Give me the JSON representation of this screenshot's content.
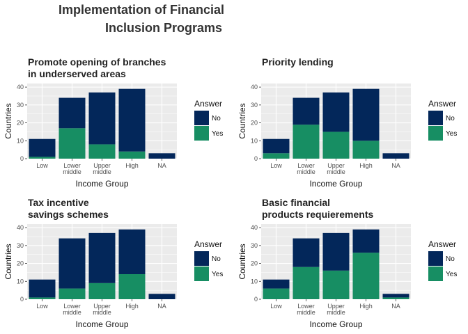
{
  "main_title": {
    "line1": "Implementation of Financial",
    "line2": "Inclusion  Programs"
  },
  "colors": {
    "No": "#03275a",
    "Yes": "#178e63",
    "panel_bg": "#ebebeb",
    "grid": "#ffffff"
  },
  "chart_data": [
    {
      "type": "bar",
      "stacked": true,
      "title_lines": [
        "Promote opening of branches",
        " in underserved areas"
      ],
      "xlabel": "Income Group",
      "ylabel": "Countries",
      "categories": [
        "Low",
        "Lower middle",
        "Upper middle",
        "High",
        "NA"
      ],
      "category_lines": [
        [
          "Low"
        ],
        [
          "Lower",
          "middle"
        ],
        [
          "Upper",
          "middle"
        ],
        [
          "High"
        ],
        [
          "NA"
        ]
      ],
      "series": [
        {
          "name": "Yes",
          "values": [
            1,
            17,
            8,
            4,
            0
          ]
        },
        {
          "name": "No",
          "values": [
            10,
            17,
            29,
            35,
            3
          ]
        }
      ],
      "ylim": [
        0,
        42
      ],
      "yticks": [
        0,
        10,
        20,
        30,
        40
      ],
      "legend": {
        "title": "Answer",
        "items": [
          "No",
          "Yes"
        ],
        "placement": "right"
      }
    },
    {
      "type": "bar",
      "stacked": true,
      "title_lines": [
        "Priority lending"
      ],
      "xlabel": "Income Group",
      "ylabel": "Countries",
      "categories": [
        "Low",
        "Lower middle",
        "Upper middle",
        "High",
        "NA"
      ],
      "category_lines": [
        [
          "Low"
        ],
        [
          "Lower",
          "middle"
        ],
        [
          "Upper",
          "middle"
        ],
        [
          "High"
        ],
        [
          "NA"
        ]
      ],
      "series": [
        {
          "name": "Yes",
          "values": [
            3,
            19,
            15,
            10,
            0
          ]
        },
        {
          "name": "No",
          "values": [
            8,
            15,
            22,
            29,
            3
          ]
        }
      ],
      "ylim": [
        0,
        42
      ],
      "yticks": [
        0,
        10,
        20,
        30,
        40
      ],
      "legend": {
        "title": "Answer",
        "items": [
          "No",
          "Yes"
        ],
        "placement": "right"
      }
    },
    {
      "type": "bar",
      "stacked": true,
      "title_lines": [
        "Tax incentive",
        " savings schemes"
      ],
      "xlabel": "Income Group",
      "ylabel": "Countries",
      "categories": [
        "Low",
        "Lower middle",
        "Upper middle",
        "High",
        "NA"
      ],
      "category_lines": [
        [
          "Low"
        ],
        [
          "Lower",
          "middle"
        ],
        [
          "Upper",
          "middle"
        ],
        [
          "High"
        ],
        [
          "NA"
        ]
      ],
      "series": [
        {
          "name": "Yes",
          "values": [
            1,
            6,
            9,
            14,
            0
          ]
        },
        {
          "name": "No",
          "values": [
            10,
            28,
            28,
            25,
            3
          ]
        }
      ],
      "ylim": [
        0,
        42
      ],
      "yticks": [
        0,
        10,
        20,
        30,
        40
      ],
      "legend": {
        "title": "Answer",
        "items": [
          "No",
          "Yes"
        ],
        "placement": "right"
      }
    },
    {
      "type": "bar",
      "stacked": true,
      "title_lines": [
        "Basic financial",
        " products requierements"
      ],
      "xlabel": "Income Group",
      "ylabel": "Countries",
      "categories": [
        "Low",
        "Lower middle",
        "Upper middle",
        "High",
        "NA"
      ],
      "category_lines": [
        [
          "Low"
        ],
        [
          "Lower",
          "middle"
        ],
        [
          "Upper",
          "middle"
        ],
        [
          "High"
        ],
        [
          "NA"
        ]
      ],
      "series": [
        {
          "name": "Yes",
          "values": [
            6,
            18,
            16,
            26,
            1
          ]
        },
        {
          "name": "No",
          "values": [
            5,
            16,
            21,
            13,
            2
          ]
        }
      ],
      "ylim": [
        0,
        42
      ],
      "yticks": [
        0,
        10,
        20,
        30,
        40
      ],
      "legend": {
        "title": "Answer",
        "items": [
          "No",
          "Yes"
        ],
        "placement": "right"
      }
    }
  ]
}
